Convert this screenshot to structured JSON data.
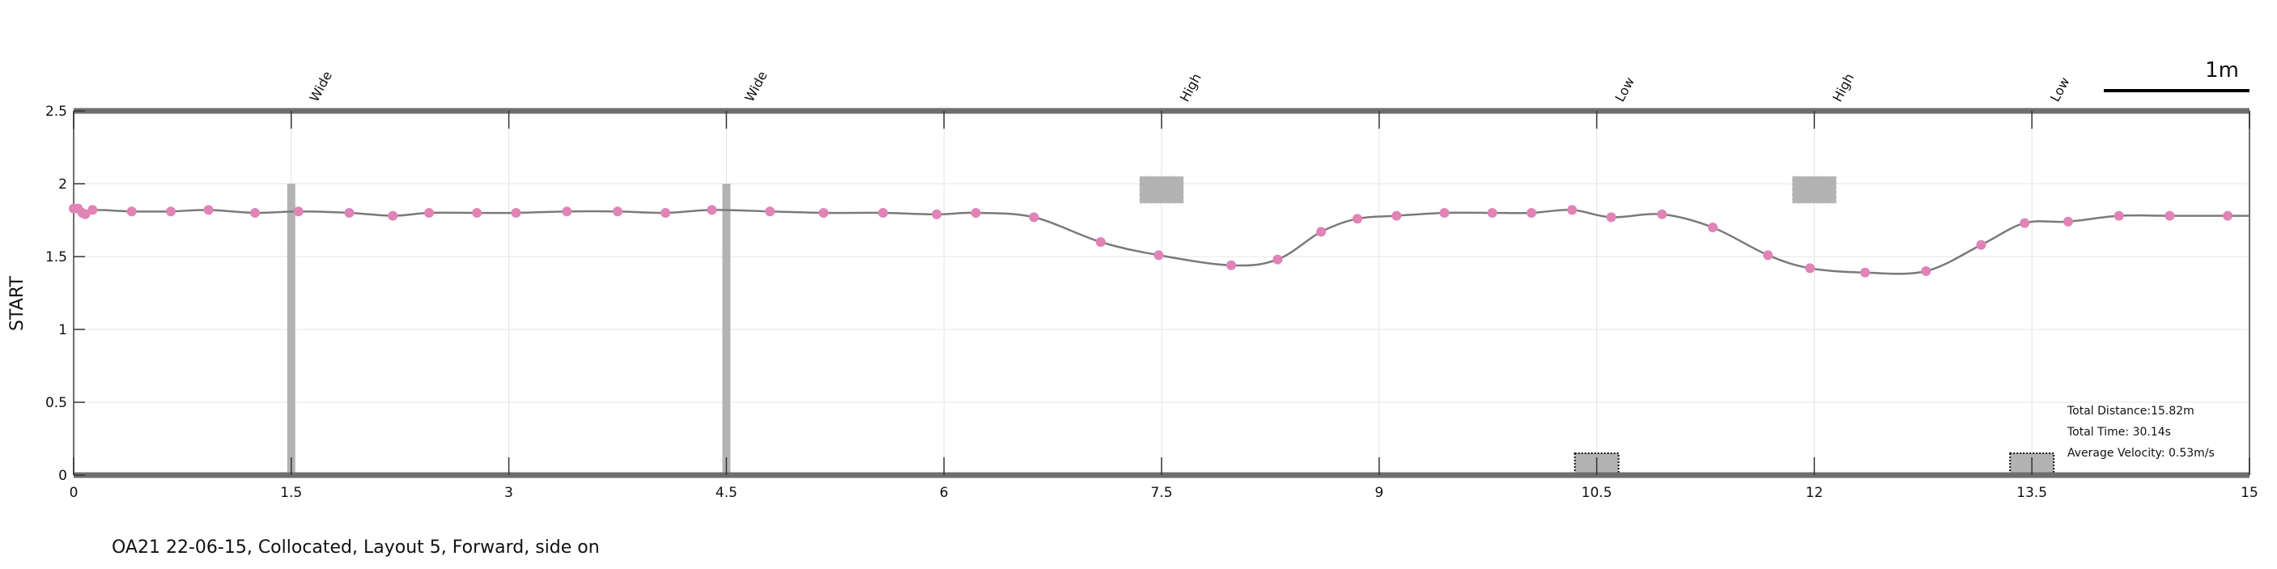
{
  "chart_data": {
    "type": "line",
    "title": "",
    "xlabel": "",
    "ylabel": "START",
    "xlim": [
      0,
      15
    ],
    "ylim": [
      0,
      2.5
    ],
    "grid": true,
    "x_ticks": [
      0,
      1.5,
      3,
      4.5,
      6,
      7.5,
      9,
      10.5,
      12,
      13.5,
      15
    ],
    "x_tick_labels": [
      "0",
      "1.5",
      "3",
      "4.5",
      "6",
      "7.5",
      "9",
      "10.5",
      "12",
      "13.5",
      "15"
    ],
    "y_ticks": [
      0,
      0.5,
      1,
      1.5,
      2,
      2.5
    ],
    "y_tick_labels": [
      "0",
      "0.5",
      "1",
      "1.5",
      "2",
      "2.5"
    ],
    "series": [
      {
        "color": "#7a7a7a",
        "marker_color": "#e083b6",
        "x": [
          0.0,
          0.03,
          0.06,
          0.08,
          0.13,
          0.4,
          0.67,
          0.93,
          1.25,
          1.55,
          1.9,
          2.2,
          2.45,
          2.78,
          3.05,
          3.4,
          3.75,
          4.08,
          4.4,
          4.8,
          5.17,
          5.58,
          5.95,
          6.22,
          6.62,
          7.08,
          7.48,
          7.98,
          8.3,
          8.6,
          8.85,
          9.12,
          9.45,
          9.78,
          10.05,
          10.33,
          10.6,
          10.95,
          11.3,
          11.68,
          11.97,
          12.35,
          12.77,
          13.15,
          13.45,
          13.75,
          14.1,
          14.45,
          14.85
        ],
        "y": [
          1.83,
          1.83,
          1.8,
          1.79,
          1.82,
          1.81,
          1.81,
          1.82,
          1.8,
          1.81,
          1.8,
          1.78,
          1.8,
          1.8,
          1.8,
          1.81,
          1.81,
          1.8,
          1.82,
          1.81,
          1.8,
          1.8,
          1.79,
          1.8,
          1.77,
          1.6,
          1.51,
          1.44,
          1.48,
          1.67,
          1.76,
          1.78,
          1.8,
          1.8,
          1.8,
          1.82,
          1.77,
          1.79,
          1.7,
          1.51,
          1.42,
          1.39,
          1.4,
          1.58,
          1.73,
          1.74,
          1.78,
          1.78,
          1.78
        ]
      }
    ],
    "obstacles": [
      {
        "label": "Wide",
        "x": 1.5
      },
      {
        "label": "Wide",
        "x": 4.5
      },
      {
        "label": "High",
        "x": 7.5
      },
      {
        "label": "Low",
        "x": 10.5
      },
      {
        "label": "High",
        "x": 12
      },
      {
        "label": "Low",
        "x": 13.5
      }
    ],
    "annotations": [
      "Total Distance:15.82m",
      "Total Time: 30.14s",
      "Average Velocity: 0.53m/s"
    ],
    "scale_bar_label": "1m"
  },
  "caption": "OA21 22-06-15, Collocated, Layout 5, Forward, side on"
}
